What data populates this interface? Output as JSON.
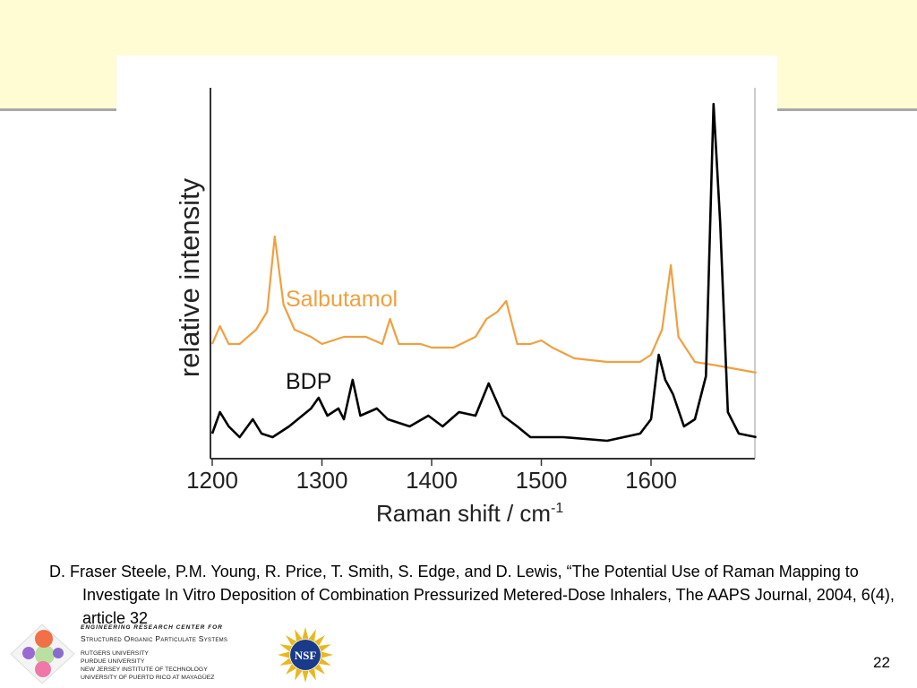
{
  "citation": "D. Fraser Steele, P.M. Young, R. Price, T. Smith, S. Edge, and D. Lewis, “The Potential Use of Raman Mapping to Investigate In Vitro Deposition of Combination Pressurized Metered-Dose Inhalers, The AAPS Journal, 2004, 6(4), article 32",
  "page_number": "22",
  "footer": {
    "erc_line": "ENGINEERING RESEARCH CENTER FOR",
    "center_name": "Structured Organic Particulate Systems",
    "universities": [
      "RUTGERS UNIVERSITY",
      "PURDUE UNIVERSITY",
      "NEW JERSEY INSTITUTE OF TECHNOLOGY",
      "UNIVERSITY OF PUERTO RICO AT MAYAGÜEZ"
    ],
    "nsf_logo_text": "NSF"
  },
  "colors": {
    "band": "#fffbd2",
    "salbutamol": "#f0a040",
    "bdp": "#000000"
  },
  "chart_data": {
    "type": "line",
    "title": "",
    "xlabel": "Raman shift / cm",
    "xlabel_sup": "-1",
    "ylabel": "relative intensity",
    "xlim": [
      1198,
      1696
    ],
    "ylim": [
      0,
      1
    ],
    "xticks": [
      1200,
      1300,
      1400,
      1500,
      1600
    ],
    "xtick_labels": [
      "1200",
      "1300",
      "1400",
      "1500",
      "1600"
    ],
    "grid": false,
    "series": [
      {
        "name": "Salbutamol",
        "x": [
          1200,
          1207,
          1215,
          1225,
          1240,
          1250,
          1257,
          1265,
          1275,
          1290,
          1300,
          1320,
          1340,
          1355,
          1362,
          1370,
          1390,
          1400,
          1420,
          1440,
          1450,
          1460,
          1468,
          1478,
          1490,
          1500,
          1510,
          1530,
          1560,
          1590,
          1600,
          1610,
          1618,
          1625,
          1640,
          1660,
          1696
        ],
        "y": [
          0.32,
          0.37,
          0.32,
          0.32,
          0.36,
          0.41,
          0.62,
          0.43,
          0.36,
          0.34,
          0.32,
          0.34,
          0.34,
          0.32,
          0.39,
          0.32,
          0.32,
          0.31,
          0.31,
          0.34,
          0.39,
          0.41,
          0.44,
          0.32,
          0.32,
          0.33,
          0.31,
          0.28,
          0.27,
          0.27,
          0.29,
          0.36,
          0.54,
          0.34,
          0.27,
          0.26,
          0.24
        ]
      },
      {
        "name": "BDP",
        "x": [
          1200,
          1207,
          1215,
          1225,
          1237,
          1245,
          1255,
          1270,
          1290,
          1297,
          1305,
          1315,
          1320,
          1328,
          1335,
          1350,
          1360,
          1380,
          1397,
          1410,
          1425,
          1440,
          1452,
          1465,
          1478,
          1490,
          1520,
          1560,
          1590,
          1600,
          1607,
          1613,
          1620,
          1630,
          1640,
          1650,
          1657,
          1663,
          1670,
          1680,
          1696
        ],
        "y": [
          0.07,
          0.13,
          0.09,
          0.06,
          0.11,
          0.07,
          0.06,
          0.09,
          0.14,
          0.17,
          0.12,
          0.14,
          0.11,
          0.22,
          0.12,
          0.14,
          0.11,
          0.09,
          0.12,
          0.09,
          0.13,
          0.12,
          0.21,
          0.12,
          0.09,
          0.06,
          0.06,
          0.05,
          0.07,
          0.11,
          0.29,
          0.22,
          0.18,
          0.09,
          0.11,
          0.23,
          0.99,
          0.66,
          0.13,
          0.07,
          0.06
        ]
      }
    ]
  }
}
